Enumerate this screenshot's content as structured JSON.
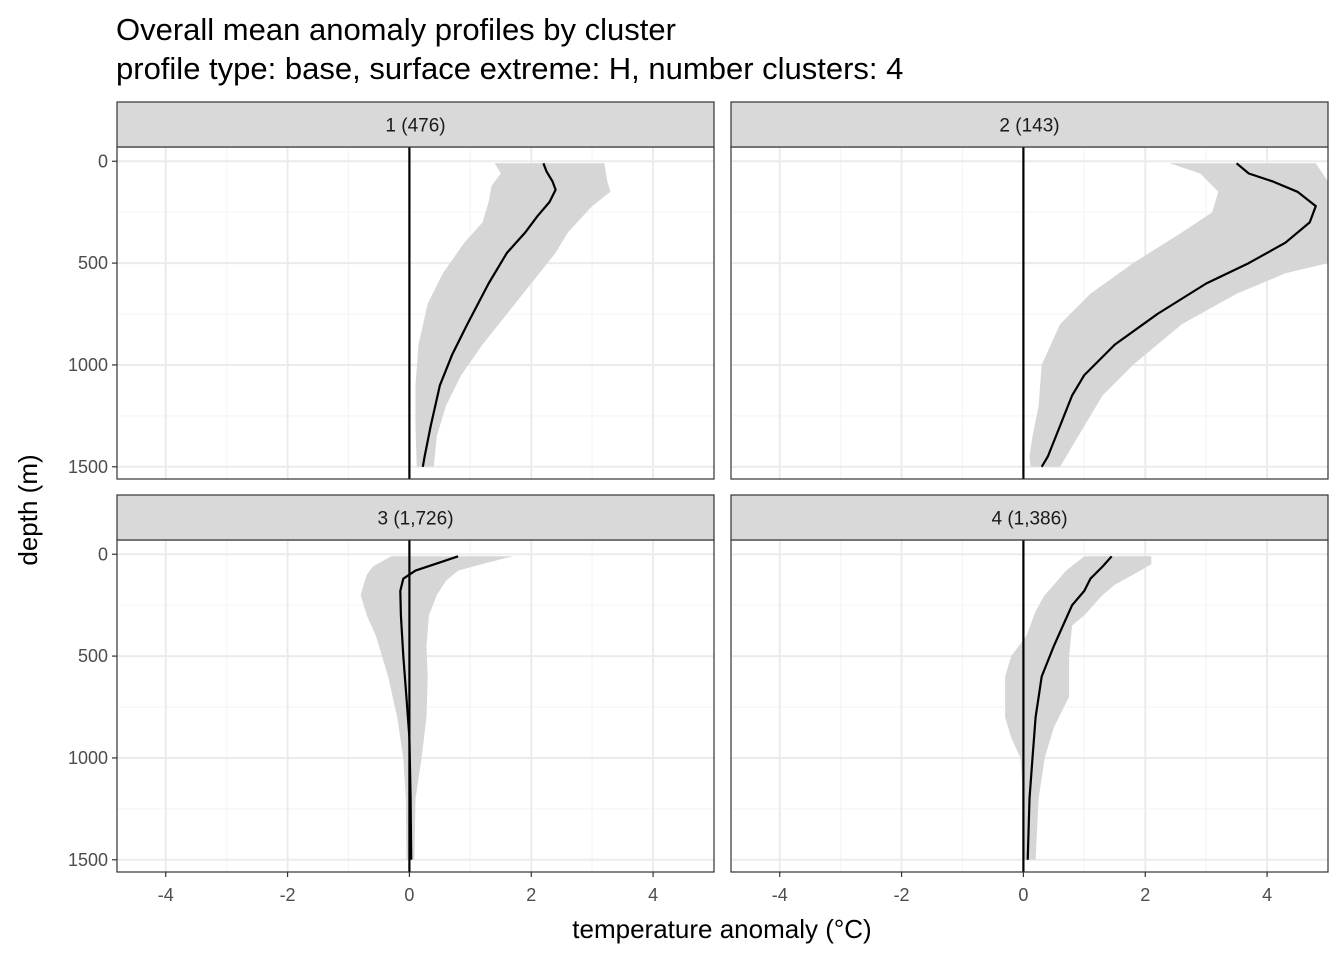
{
  "chart_data": {
    "type": "line",
    "title": "Overall mean anomaly profiles by cluster",
    "subtitle": "profile type: base, surface extreme: H, number clusters: 4",
    "xlabel": "temperature anomaly (°C)",
    "ylabel": "depth (m)",
    "xlim": [
      -4.8,
      5.0
    ],
    "ylim": [
      1560,
      -70
    ],
    "y_reversed": true,
    "x_ticks": [
      -4,
      -2,
      0,
      2,
      4
    ],
    "x_tick_labels": [
      "-4",
      "-2",
      "0",
      "2",
      "4"
    ],
    "y_ticks": [
      0,
      500,
      1000,
      1500
    ],
    "y_tick_labels": [
      "0",
      "500",
      "1000",
      "1500"
    ],
    "grid": true,
    "reference_line_x": 0,
    "facets": [
      {
        "label": "1 (476)",
        "mean": [
          [
            2.2,
            10
          ],
          [
            2.25,
            50
          ],
          [
            2.35,
            100
          ],
          [
            2.4,
            140
          ],
          [
            2.3,
            200
          ],
          [
            2.1,
            270
          ],
          [
            1.9,
            350
          ],
          [
            1.6,
            450
          ],
          [
            1.3,
            600
          ],
          [
            0.95,
            800
          ],
          [
            0.7,
            950
          ],
          [
            0.5,
            1100
          ],
          [
            0.35,
            1300
          ],
          [
            0.25,
            1450
          ],
          [
            0.22,
            1500
          ]
        ],
        "ribbon_low": [
          [
            1.4,
            10
          ],
          [
            1.5,
            60
          ],
          [
            1.35,
            120
          ],
          [
            1.3,
            200
          ],
          [
            1.2,
            300
          ],
          [
            0.9,
            400
          ],
          [
            0.55,
            550
          ],
          [
            0.3,
            700
          ],
          [
            0.15,
            900
          ],
          [
            0.1,
            1100
          ],
          [
            0.1,
            1300
          ],
          [
            0.12,
            1500
          ]
        ],
        "ribbon_high": [
          [
            3.2,
            10
          ],
          [
            3.25,
            100
          ],
          [
            3.3,
            150
          ],
          [
            3.0,
            220
          ],
          [
            2.6,
            350
          ],
          [
            2.4,
            450
          ],
          [
            2.0,
            600
          ],
          [
            1.6,
            750
          ],
          [
            1.2,
            900
          ],
          [
            0.85,
            1050
          ],
          [
            0.6,
            1200
          ],
          [
            0.45,
            1350
          ],
          [
            0.4,
            1500
          ]
        ]
      },
      {
        "label": "2 (143)",
        "mean": [
          [
            3.5,
            10
          ],
          [
            3.7,
            60
          ],
          [
            4.1,
            100
          ],
          [
            4.5,
            150
          ],
          [
            4.8,
            220
          ],
          [
            4.7,
            300
          ],
          [
            4.3,
            400
          ],
          [
            3.7,
            500
          ],
          [
            3.0,
            600
          ],
          [
            2.2,
            750
          ],
          [
            1.5,
            900
          ],
          [
            1.0,
            1050
          ],
          [
            0.8,
            1150
          ],
          [
            0.6,
            1300
          ],
          [
            0.4,
            1450
          ],
          [
            0.3,
            1500
          ]
        ],
        "ribbon_low": [
          [
            2.4,
            10
          ],
          [
            2.9,
            60
          ],
          [
            3.2,
            150
          ],
          [
            3.1,
            250
          ],
          [
            2.6,
            350
          ],
          [
            1.8,
            500
          ],
          [
            1.1,
            650
          ],
          [
            0.6,
            800
          ],
          [
            0.3,
            1000
          ],
          [
            0.25,
            1200
          ],
          [
            0.15,
            1350
          ],
          [
            0.1,
            1450
          ],
          [
            0.12,
            1500
          ]
        ],
        "ribbon_high": [
          [
            4.8,
            10
          ],
          [
            5.0,
            100
          ],
          [
            5.0,
            500
          ],
          [
            4.3,
            550
          ],
          [
            3.5,
            650
          ],
          [
            2.6,
            800
          ],
          [
            1.8,
            1000
          ],
          [
            1.3,
            1150
          ],
          [
            1.0,
            1300
          ],
          [
            0.7,
            1450
          ],
          [
            0.6,
            1500
          ]
        ]
      },
      {
        "label": "3 (1,726)",
        "mean": [
          [
            0.8,
            10
          ],
          [
            0.5,
            40
          ],
          [
            0.1,
            80
          ],
          [
            -0.1,
            120
          ],
          [
            -0.15,
            180
          ],
          [
            -0.14,
            300
          ],
          [
            -0.1,
            500
          ],
          [
            -0.05,
            700
          ],
          [
            0.0,
            900
          ],
          [
            0.02,
            1200
          ],
          [
            0.03,
            1500
          ]
        ],
        "ribbon_low": [
          [
            -0.3,
            10
          ],
          [
            -0.6,
            60
          ],
          [
            -0.7,
            100
          ],
          [
            -0.75,
            150
          ],
          [
            -0.8,
            200
          ],
          [
            -0.7,
            300
          ],
          [
            -0.55,
            400
          ],
          [
            -0.35,
            600
          ],
          [
            -0.2,
            800
          ],
          [
            -0.1,
            1000
          ],
          [
            -0.06,
            1200
          ],
          [
            -0.05,
            1500
          ]
        ],
        "ribbon_high": [
          [
            1.7,
            10
          ],
          [
            1.3,
            40
          ],
          [
            0.8,
            80
          ],
          [
            0.6,
            130
          ],
          [
            0.45,
            200
          ],
          [
            0.32,
            300
          ],
          [
            0.28,
            450
          ],
          [
            0.3,
            600
          ],
          [
            0.28,
            800
          ],
          [
            0.2,
            1000
          ],
          [
            0.1,
            1200
          ],
          [
            0.08,
            1500
          ]
        ]
      },
      {
        "label": "4 (1,386)",
        "mean": [
          [
            1.45,
            10
          ],
          [
            1.3,
            60
          ],
          [
            1.1,
            120
          ],
          [
            1.0,
            180
          ],
          [
            0.8,
            250
          ],
          [
            0.65,
            350
          ],
          [
            0.5,
            450
          ],
          [
            0.3,
            600
          ],
          [
            0.2,
            800
          ],
          [
            0.15,
            1000
          ],
          [
            0.1,
            1200
          ],
          [
            0.07,
            1500
          ]
        ],
        "ribbon_low": [
          [
            1.0,
            10
          ],
          [
            0.7,
            80
          ],
          [
            0.5,
            150
          ],
          [
            0.35,
            200
          ],
          [
            0.2,
            280
          ],
          [
            0.05,
            400
          ],
          [
            -0.2,
            500
          ],
          [
            -0.3,
            600
          ],
          [
            -0.3,
            800
          ],
          [
            -0.2,
            900
          ],
          [
            -0.05,
            1000
          ],
          [
            0.0,
            1200
          ],
          [
            0.0,
            1500
          ]
        ],
        "ribbon_high": [
          [
            2.1,
            10
          ],
          [
            2.1,
            50
          ],
          [
            1.8,
            100
          ],
          [
            1.5,
            150
          ],
          [
            1.3,
            200
          ],
          [
            1.0,
            300
          ],
          [
            0.8,
            350
          ],
          [
            0.75,
            500
          ],
          [
            0.75,
            700
          ],
          [
            0.5,
            850
          ],
          [
            0.35,
            1000
          ],
          [
            0.25,
            1200
          ],
          [
            0.2,
            1500
          ]
        ]
      }
    ],
    "colors": {
      "line": "#000000",
      "ribbon": "#d6d6d6",
      "strip_fill": "#d9d9d9",
      "panel_border": "#333333",
      "grid_major": "#ebebeb",
      "grid_minor": "#f5f5f5"
    }
  }
}
